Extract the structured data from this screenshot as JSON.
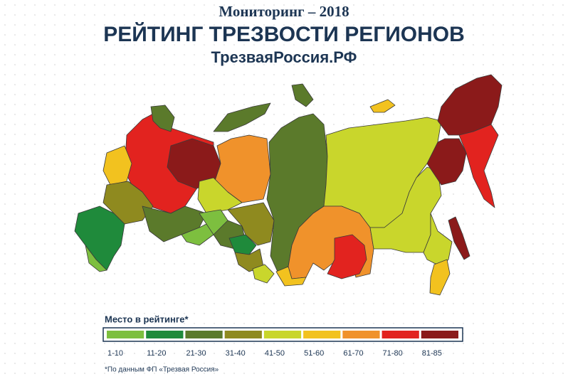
{
  "header": {
    "subtitle": "Мониторинг – 2018",
    "title": "РЕЙТИНГ ТРЕЗВОСТИ РЕГИОНОВ",
    "site": "ТрезваяРоссия.РФ"
  },
  "legend": {
    "title": "Место в рейтинге*",
    "items": [
      {
        "label": "1-10",
        "color": "#7dbf3f"
      },
      {
        "label": "11-20",
        "color": "#1f8a3b"
      },
      {
        "label": "21-30",
        "color": "#5b7a2b"
      },
      {
        "label": "31-40",
        "color": "#8f8a1f"
      },
      {
        "label": "41-50",
        "color": "#c9d62c"
      },
      {
        "label": "51-60",
        "color": "#f2c21f"
      },
      {
        "label": "61-70",
        "color": "#f0922b"
      },
      {
        "label": "71-80",
        "color": "#e2231f"
      },
      {
        "label": "81-85",
        "color": "#8b1a1a"
      }
    ]
  },
  "footnote": "*По данным ФП «Трезвая Россия»"
}
